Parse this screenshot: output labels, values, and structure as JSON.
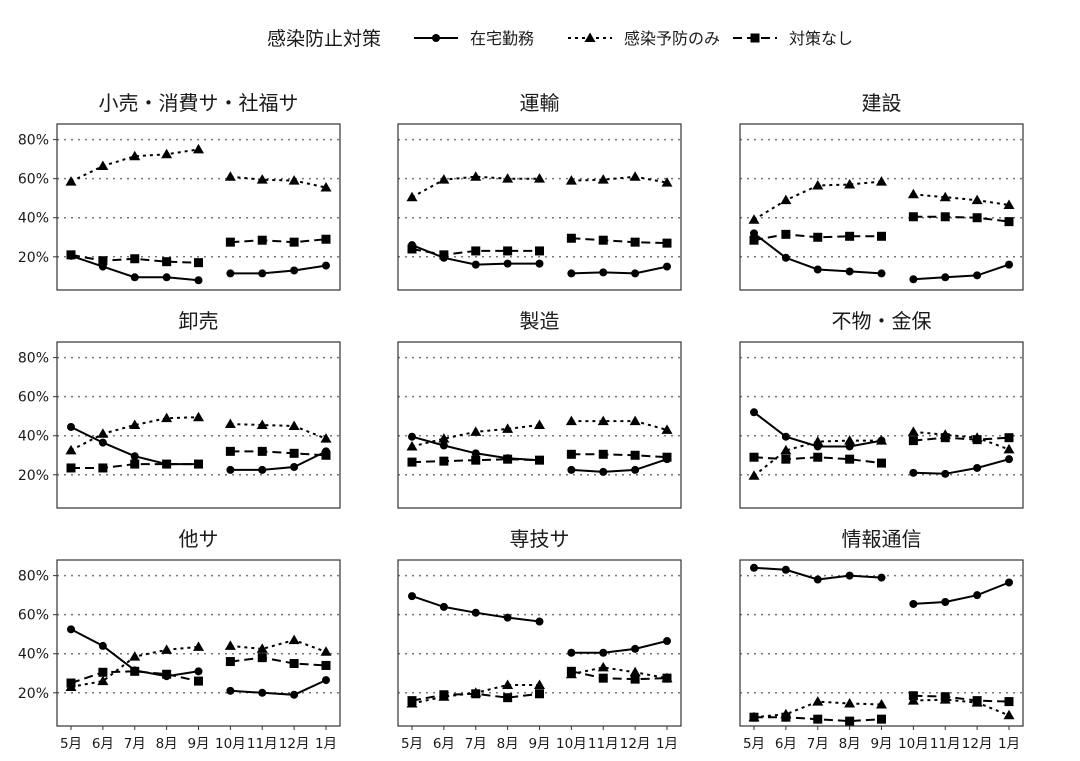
{
  "legend": {
    "title": "感染防止対策",
    "placement": "top",
    "items": [
      {
        "label": "在宅勤務",
        "marker": "circle",
        "line": "solid"
      },
      {
        "label": "感染予防のみ",
        "marker": "triangle",
        "line": "dotted"
      },
      {
        "label": "対策なし",
        "marker": "square",
        "line": "dashed"
      }
    ]
  },
  "chart_data": {
    "type": "line",
    "layout": "facet grid 3x3",
    "grid": "horizontal dotted",
    "ylim": [
      0.03,
      0.88
    ],
    "yticks": [
      0.2,
      0.4,
      0.6,
      0.8
    ],
    "ytick_labels": [
      "20%",
      "40%",
      "60%",
      "80%"
    ],
    "categories": [
      "5月",
      "6月",
      "7月",
      "8月",
      "9月",
      "10月",
      "11月",
      "12月",
      "1月"
    ],
    "segments": [
      [
        0,
        4
      ],
      [
        5,
        8
      ]
    ],
    "panels": [
      {
        "title": "小売・消費サ・社福サ",
        "series": [
          {
            "name": "在宅勤務",
            "values": [
              0.205,
              0.15,
              0.095,
              0.095,
              0.08,
              0.115,
              0.115,
              0.13,
              0.155
            ]
          },
          {
            "name": "感染予防のみ",
            "values": [
              0.585,
              0.665,
              0.715,
              0.725,
              0.75,
              0.61,
              0.595,
              0.59,
              0.555
            ]
          },
          {
            "name": "対策なし",
            "values": [
              0.21,
              0.18,
              0.19,
              0.175,
              0.17,
              0.275,
              0.285,
              0.275,
              0.29
            ]
          }
        ]
      },
      {
        "title": "運輸",
        "series": [
          {
            "name": "在宅勤務",
            "values": [
              0.26,
              0.195,
              0.16,
              0.165,
              0.165,
              0.115,
              0.12,
              0.115,
              0.15
            ]
          },
          {
            "name": "感染予防のみ",
            "values": [
              0.505,
              0.595,
              0.61,
              0.6,
              0.6,
              0.59,
              0.595,
              0.61,
              0.58
            ]
          },
          {
            "name": "対策なし",
            "values": [
              0.24,
              0.21,
              0.23,
              0.23,
              0.23,
              0.295,
              0.285,
              0.275,
              0.27
            ]
          }
        ]
      },
      {
        "title": "建設",
        "series": [
          {
            "name": "在宅勤務",
            "values": [
              0.32,
              0.195,
              0.135,
              0.125,
              0.115,
              0.085,
              0.095,
              0.105,
              0.16
            ]
          },
          {
            "name": "感染予防のみ",
            "values": [
              0.39,
              0.49,
              0.565,
              0.57,
              0.585,
              0.52,
              0.505,
              0.49,
              0.465
            ]
          },
          {
            "name": "対策なし",
            "values": [
              0.285,
              0.315,
              0.3,
              0.305,
              0.305,
              0.405,
              0.405,
              0.4,
              0.38
            ]
          }
        ]
      },
      {
        "title": "卸売",
        "series": [
          {
            "name": "在宅勤務",
            "values": [
              0.445,
              0.365,
              0.295,
              0.255,
              0.255,
              0.225,
              0.225,
              0.24,
              0.32
            ]
          },
          {
            "name": "感染予防のみ",
            "values": [
              0.325,
              0.41,
              0.455,
              0.49,
              0.495,
              0.46,
              0.455,
              0.45,
              0.385
            ]
          },
          {
            "name": "対策なし",
            "values": [
              0.235,
              0.235,
              0.255,
              0.255,
              0.255,
              0.32,
              0.32,
              0.31,
              0.3
            ]
          }
        ]
      },
      {
        "title": "製造",
        "series": [
          {
            "name": "在宅勤務",
            "values": [
              0.395,
              0.35,
              0.31,
              0.285,
              0.275,
              0.225,
              0.215,
              0.225,
              0.28
            ]
          },
          {
            "name": "感染予防のみ",
            "values": [
              0.345,
              0.385,
              0.42,
              0.435,
              0.455,
              0.475,
              0.475,
              0.475,
              0.43
            ]
          },
          {
            "name": "対策なし",
            "values": [
              0.265,
              0.27,
              0.275,
              0.28,
              0.275,
              0.305,
              0.305,
              0.3,
              0.29
            ]
          }
        ]
      },
      {
        "title": "不物・金保",
        "series": [
          {
            "name": "在宅勤務",
            "values": [
              0.52,
              0.395,
              0.345,
              0.345,
              0.375,
              0.21,
              0.205,
              0.235,
              0.28
            ]
          },
          {
            "name": "感染予防のみ",
            "values": [
              0.195,
              0.325,
              0.37,
              0.375,
              0.375,
              0.42,
              0.405,
              0.39,
              0.33
            ]
          },
          {
            "name": "対策なし",
            "values": [
              0.29,
              0.28,
              0.29,
              0.28,
              0.26,
              0.375,
              0.39,
              0.38,
              0.39
            ]
          }
        ]
      },
      {
        "title": "他サ",
        "series": [
          {
            "name": "在宅勤務",
            "values": [
              0.525,
              0.44,
              0.315,
              0.285,
              0.31,
              0.21,
              0.2,
              0.19,
              0.265
            ]
          },
          {
            "name": "感染予防のみ",
            "values": [
              0.23,
              0.26,
              0.385,
              0.42,
              0.435,
              0.44,
              0.425,
              0.47,
              0.41
            ]
          },
          {
            "name": "対策なし",
            "values": [
              0.25,
              0.305,
              0.31,
              0.295,
              0.26,
              0.36,
              0.38,
              0.35,
              0.34
            ]
          }
        ]
      },
      {
        "title": "専技サ",
        "series": [
          {
            "name": "在宅勤務",
            "values": [
              0.695,
              0.64,
              0.61,
              0.585,
              0.565,
              0.405,
              0.405,
              0.425,
              0.465
            ]
          },
          {
            "name": "感染予防のみ",
            "values": [
              0.145,
              0.18,
              0.2,
              0.24,
              0.24,
              0.295,
              0.33,
              0.305,
              0.275
            ]
          },
          {
            "name": "対策なし",
            "values": [
              0.16,
              0.19,
              0.195,
              0.175,
              0.195,
              0.31,
              0.275,
              0.27,
              0.275
            ]
          }
        ]
      },
      {
        "title": "情報通信",
        "series": [
          {
            "name": "在宅勤務",
            "values": [
              0.84,
              0.83,
              0.78,
              0.8,
              0.79,
              0.655,
              0.665,
              0.7,
              0.765
            ]
          },
          {
            "name": "感染予防のみ",
            "values": [
              0.075,
              0.09,
              0.155,
              0.145,
              0.14,
              0.16,
              0.165,
              0.15,
              0.085
            ]
          },
          {
            "name": "対策なし",
            "values": [
              0.075,
              0.075,
              0.065,
              0.055,
              0.065,
              0.185,
              0.18,
              0.16,
              0.155
            ]
          }
        ]
      }
    ]
  }
}
